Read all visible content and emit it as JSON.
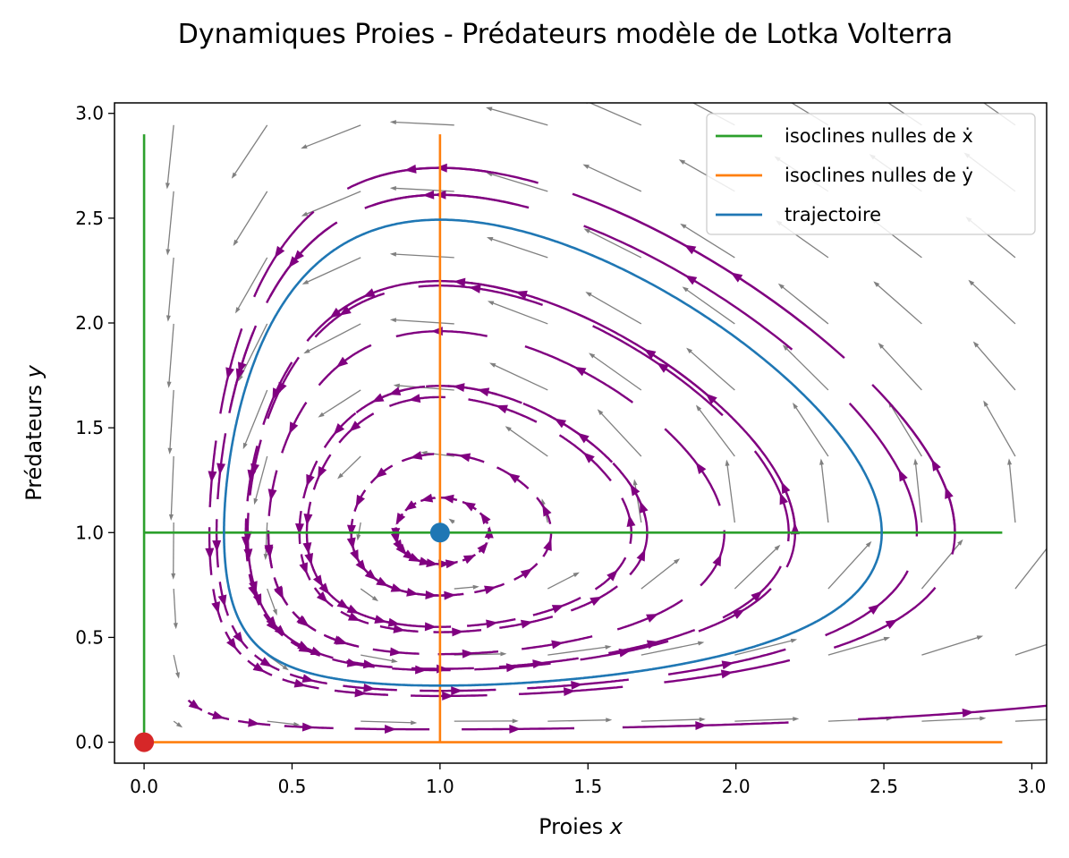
{
  "chart_data": {
    "type": "line",
    "title": "Dynamiques Proies - Prédateurs modèle de Lotka Volterra",
    "xlabel": "Proies x",
    "ylabel": "Prédateurs y",
    "xlim": [
      -0.1,
      3.05
    ],
    "ylim": [
      -0.1,
      3.05
    ],
    "x_ticks": [
      "0.0",
      "0.5",
      "1.0",
      "1.5",
      "2.0",
      "2.5",
      "3.0"
    ],
    "y_ticks": [
      "0.0",
      "0.5",
      "1.0",
      "1.5",
      "2.0",
      "2.5",
      "3.0"
    ],
    "grid": false,
    "legend_position": "top-right",
    "model": {
      "alpha": 1,
      "beta": 1,
      "delta": 1,
      "gamma": 1
    },
    "series": [
      {
        "name": "isoclines nulles de ẋ",
        "color": "#2ca02c",
        "segments": [
          {
            "x": [
              0,
              0
            ],
            "y": [
              0,
              2.9
            ]
          },
          {
            "x": [
              0,
              2.9
            ],
            "y": [
              1,
              1
            ]
          }
        ]
      },
      {
        "name": "isoclines nulles de ẏ",
        "color": "#ff7f0e",
        "segments": [
          {
            "x": [
              1,
              1
            ],
            "y": [
              0,
              2.9
            ]
          },
          {
            "x": [
              0,
              2.9
            ],
            "y": [
              0,
              0
            ]
          }
        ]
      },
      {
        "name": "trajectoire",
        "color": "#1f77b4",
        "orbit": {
          "through_point": [
            0.27,
            1.0
          ],
          "x_range": [
            0.27,
            2.49
          ],
          "y_range": [
            0.27,
            2.5
          ]
        }
      }
    ],
    "equilibria": [
      {
        "x": 0,
        "y": 0,
        "color": "#d62728"
      },
      {
        "x": 1,
        "y": 1,
        "color": "#1f77b4"
      }
    ],
    "quiver": {
      "color": "#808080",
      "grid_start": 0.1,
      "grid_step": 0.316,
      "count": 10
    },
    "streamlines": {
      "color": "#800080"
    }
  }
}
